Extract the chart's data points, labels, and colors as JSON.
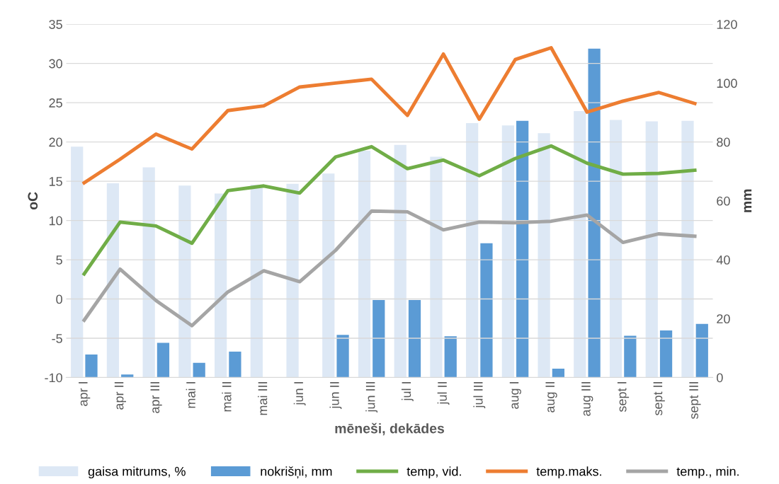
{
  "chart_data": {
    "type": "bar",
    "xlabel": "mēneši, dekādes",
    "ylabel": "oC",
    "y2label": "mm",
    "categories": [
      "apr I",
      "apr II",
      "apr III",
      "mai I",
      "mai II",
      "mai III",
      "jun I",
      "jun II",
      "jun III",
      "jul I",
      "jul II",
      "jul III",
      "aug I",
      "aug II",
      "aug III",
      "sept I",
      "sept II",
      "sept III"
    ],
    "series": [
      {
        "name": "gaisa mitrums, %",
        "axis": "y2",
        "color": "#dde8f5",
        "values": [
          78.4,
          66,
          71.4,
          65.2,
          62.5,
          65.5,
          65.8,
          69.3,
          77,
          79,
          75,
          86.4,
          85.6,
          83,
          90.5,
          87.5,
          87,
          87.2
        ]
      },
      {
        "name": "nokrišņi, mm",
        "axis": "y2",
        "color": "#5b9bd5",
        "values": [
          7.8,
          1,
          11.8,
          5,
          8.8,
          0,
          0,
          14.5,
          26.3,
          26.3,
          14,
          45.6,
          87.2,
          3,
          111.7,
          14.2,
          16,
          18.2
        ]
      },
      {
        "name": "temp, vid.",
        "type": "line",
        "color": "#70ad47",
        "values": [
          3.2,
          9.8,
          9.3,
          7.1,
          13.8,
          14.4,
          13.5,
          18.1,
          19.4,
          16.6,
          17.7,
          15.7,
          17.9,
          19.5,
          17.3,
          15.9,
          16.0,
          16.4
        ]
      },
      {
        "name": "temp.maks.",
        "type": "line",
        "color": "#ed7d31",
        "values": [
          14.8,
          17.8,
          21,
          19.1,
          24,
          24.6,
          27,
          27.5,
          28,
          23.4,
          31.2,
          22.9,
          30.5,
          32,
          23.8,
          25.2,
          26.3,
          24.9
        ]
      },
      {
        "name": "temp., min.",
        "type": "line",
        "color": "#a5a5a5",
        "values": [
          -2.7,
          3.8,
          -0.2,
          -3.4,
          0.9,
          3.6,
          2.2,
          6.2,
          11.2,
          11.1,
          8.8,
          9.8,
          9.7,
          9.9,
          10.7,
          7.2,
          8.3,
          8.0
        ]
      }
    ],
    "ylim": [
      -10,
      35
    ],
    "yticks": [
      -10,
      -5,
      0,
      5,
      10,
      15,
      20,
      25,
      30,
      35
    ],
    "y2lim": [
      0,
      120
    ],
    "y2ticks": [
      0,
      20,
      40,
      60,
      80,
      100,
      120
    ],
    "grid": "y",
    "legend": "bottom",
    "marker": "none",
    "line_style": "solid"
  }
}
